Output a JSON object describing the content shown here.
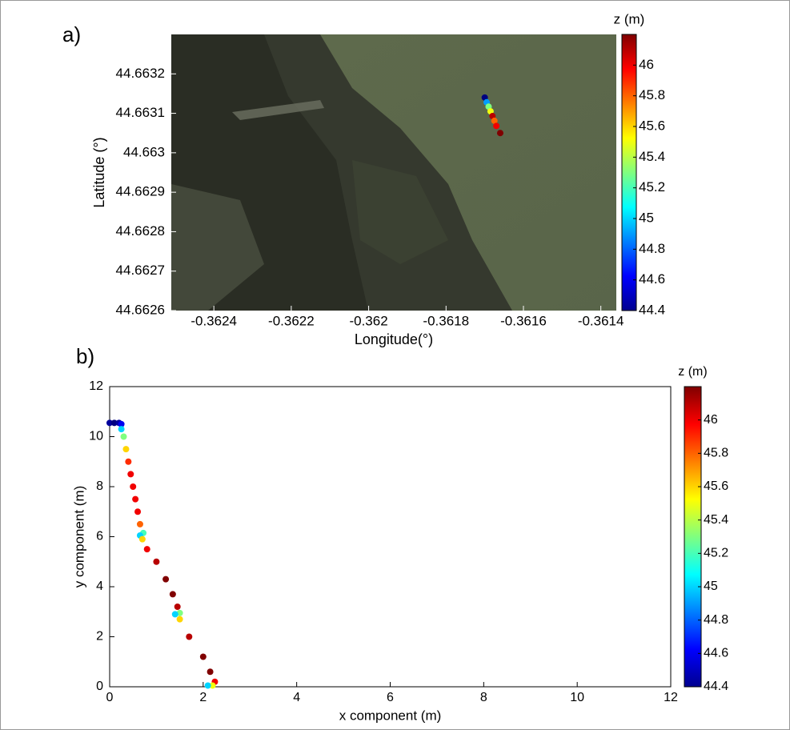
{
  "chart_data": [
    {
      "type": "scatter",
      "panel_label": "a)",
      "xlabel": "Longitude(°)",
      "ylabel": "Latitude (°)",
      "xlim": [
        -0.36251,
        -0.36136
      ],
      "ylim": [
        44.6626,
        44.6633
      ],
      "xticks": [
        -0.3624,
        -0.3622,
        -0.362,
        -0.3618,
        -0.3616,
        -0.3614
      ],
      "yticks": [
        44.6626,
        44.6627,
        44.6628,
        44.6629,
        44.663,
        44.6631,
        44.6632
      ],
      "x": [
        -0.3617,
        -0.361695,
        -0.36169,
        -0.361685,
        -0.36168,
        -0.361675,
        -0.36167,
        -0.36166
      ],
      "y": [
        44.66314,
        44.663128,
        44.663117,
        44.663105,
        44.663093,
        44.663081,
        44.663068,
        44.66305
      ],
      "z": [
        44.4,
        44.9,
        45.3,
        45.5,
        46.1,
        45.8,
        46.0,
        46.2
      ],
      "colormap": "jet",
      "colorbar_label": "z (m)",
      "clim": [
        44.4,
        46.2
      ],
      "cticks": [
        44.4,
        44.6,
        44.8,
        45,
        45.2,
        45.4,
        45.6,
        45.8,
        46
      ]
    },
    {
      "type": "scatter",
      "panel_label": "b)",
      "xlabel": "x component (m)",
      "ylabel": "y component (m)",
      "xlim": [
        0,
        12
      ],
      "ylim": [
        0,
        12
      ],
      "xticks": [
        0,
        2,
        4,
        6,
        8,
        10,
        12
      ],
      "yticks": [
        0,
        2,
        4,
        6,
        8,
        10,
        12
      ],
      "x": [
        0.0,
        0.1,
        0.2,
        0.25,
        0.25,
        0.3,
        0.35,
        0.4,
        0.45,
        0.5,
        0.55,
        0.6,
        0.65,
        0.72,
        0.65,
        0.7,
        0.8,
        1.0,
        1.2,
        1.35,
        1.45,
        1.5,
        1.4,
        1.5,
        1.7,
        2.0,
        2.15,
        2.25,
        2.2,
        2.1
      ],
      "y": [
        10.55,
        10.55,
        10.55,
        10.5,
        10.3,
        10.0,
        9.5,
        9.0,
        8.5,
        8.0,
        7.5,
        7.0,
        6.5,
        6.15,
        6.05,
        5.9,
        5.5,
        5.0,
        4.3,
        3.7,
        3.2,
        2.95,
        2.9,
        2.7,
        2.0,
        1.2,
        0.6,
        0.2,
        0.05,
        0.05
      ],
      "z": [
        44.45,
        44.4,
        44.45,
        44.6,
        45.0,
        45.3,
        45.6,
        45.9,
        46.0,
        46.0,
        46.0,
        46.0,
        45.8,
        45.2,
        45.0,
        45.6,
        46.0,
        46.1,
        46.2,
        46.2,
        46.1,
        45.3,
        45.0,
        45.6,
        46.1,
        46.2,
        46.2,
        46.0,
        45.5,
        45.0
      ],
      "colormap": "jet",
      "colorbar_label": "z (m)",
      "clim": [
        44.4,
        46.2
      ],
      "cticks": [
        44.4,
        44.6,
        44.8,
        45,
        45.2,
        45.4,
        45.6,
        45.8,
        46
      ]
    }
  ]
}
